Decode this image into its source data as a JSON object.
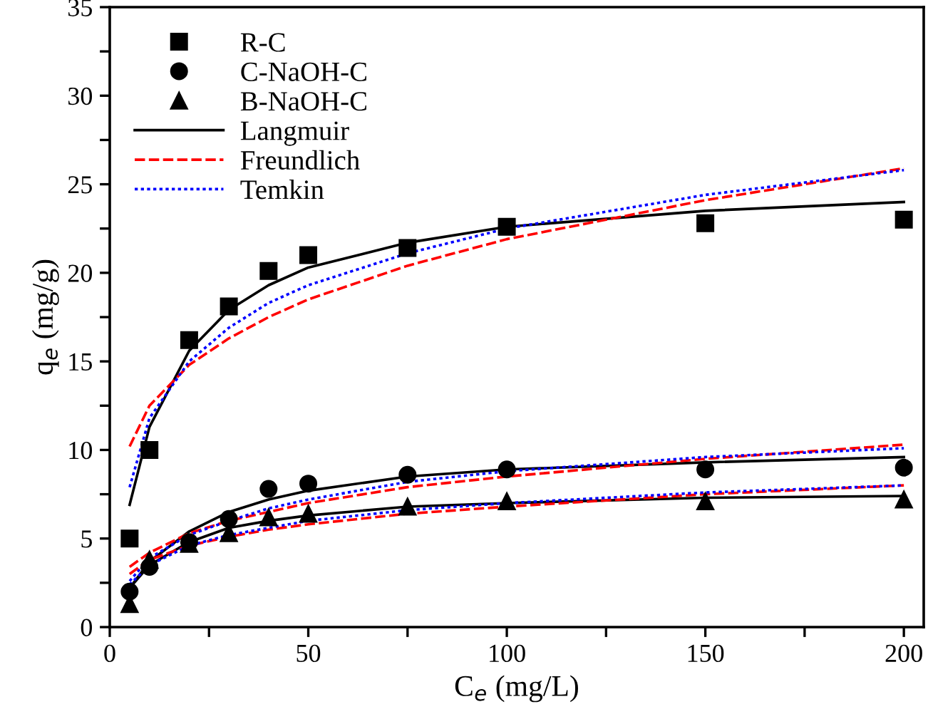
{
  "chart_data": {
    "type": "scatter",
    "xlabel": "C$_{e}$ (mg/L)",
    "ylabel": "q$_{e}$ (mg/g)",
    "xlim": [
      0,
      205
    ],
    "ylim": [
      0,
      35
    ],
    "xticks": [
      0,
      {
        "value": 25,
        "label": null
      },
      50,
      {
        "value": 75,
        "label": null
      },
      100,
      {
        "value": 125,
        "label": null
      },
      150,
      {
        "value": 175,
        "label": null
      },
      200
    ],
    "yticks": [
      0,
      {
        "value": 2.5,
        "label": null
      },
      5,
      {
        "value": 7.5,
        "label": null
      },
      10,
      {
        "value": 12.5,
        "label": null
      },
      15,
      {
        "value": 17.5,
        "label": null
      },
      20,
      {
        "value": 22.5,
        "label": null
      },
      25,
      {
        "value": 27.5,
        "label": null
      },
      30,
      {
        "value": 32.5,
        "label": null
      },
      35
    ],
    "grid": false,
    "legend": "top left",
    "series": [
      {
        "name": "R-C",
        "marker": "square",
        "color": "#000000",
        "x": [
          5,
          10,
          20,
          30,
          40,
          50,
          75,
          100,
          150,
          200
        ],
        "values": [
          5.0,
          10.0,
          16.2,
          18.1,
          20.1,
          21.0,
          21.4,
          22.6,
          22.8,
          23.0
        ]
      },
      {
        "name": "C-NaOH-C",
        "marker": "circle",
        "color": "#000000",
        "x": [
          5,
          10,
          20,
          30,
          40,
          50,
          75,
          100,
          150,
          200
        ],
        "values": [
          2.0,
          3.4,
          4.8,
          6.1,
          7.8,
          8.1,
          8.6,
          8.9,
          8.9,
          9.0
        ]
      },
      {
        "name": "B-NaOH-C",
        "marker": "triangle",
        "color": "#000000",
        "x": [
          5,
          10,
          20,
          30,
          40,
          50,
          75,
          100,
          150,
          200
        ],
        "values": [
          1.3,
          3.8,
          4.7,
          5.3,
          6.2,
          6.4,
          6.8,
          7.1,
          7.1,
          7.2
        ]
      },
      {
        "name": "Langmuir",
        "type": "line",
        "line_style": "solid",
        "color": "#000000",
        "x": [
          5,
          10,
          20,
          30,
          40,
          50,
          75,
          100,
          150,
          200
        ],
        "values": [
          6.9,
          11.3,
          15.6,
          17.9,
          19.3,
          20.3,
          21.7,
          22.6,
          23.5,
          24.0
        ]
      },
      {
        "name": "Freundlich",
        "type": "line",
        "line_style": "dashed",
        "color": "#ff0000",
        "x": [
          5,
          10,
          20,
          30,
          40,
          50,
          75,
          100,
          150,
          200
        ],
        "values": [
          10.2,
          12.5,
          14.8,
          16.3,
          17.5,
          18.5,
          20.4,
          21.9,
          24.1,
          25.9
        ]
      },
      {
        "name": "Temkin",
        "type": "line",
        "line_style": "dotted",
        "color": "#0000ff",
        "x": [
          5,
          10,
          20,
          30,
          40,
          50,
          75,
          100,
          150,
          200
        ],
        "values": [
          7.9,
          11.8,
          15.0,
          16.9,
          18.3,
          19.3,
          21.1,
          22.5,
          24.4,
          25.8
        ]
      },
      {
        "type": "line",
        "line_style": "solid",
        "color": "#000000",
        "x": [
          5,
          10,
          20,
          30,
          40,
          50,
          75,
          100,
          150,
          200
        ],
        "values": [
          2.2,
          3.7,
          5.4,
          6.5,
          7.2,
          7.7,
          8.5,
          8.9,
          9.3,
          9.6
        ]
      },
      {
        "type": "line",
        "line_style": "dashed",
        "color": "#ff0000",
        "x": [
          5,
          10,
          20,
          30,
          40,
          50,
          75,
          100,
          150,
          200
        ],
        "values": [
          3.4,
          4.2,
          5.3,
          6.0,
          6.5,
          7.0,
          7.9,
          8.5,
          9.5,
          10.3
        ]
      },
      {
        "type": "line",
        "line_style": "dotted",
        "color": "#0000ff",
        "x": [
          5,
          10,
          20,
          30,
          40,
          50,
          75,
          100,
          150,
          200
        ],
        "values": [
          2.6,
          3.9,
          5.2,
          6.0,
          6.7,
          7.2,
          8.2,
          8.8,
          9.6,
          10.1
        ]
      },
      {
        "type": "line",
        "line_style": "solid",
        "color": "#000000",
        "x": [
          5,
          10,
          20,
          30,
          40,
          50,
          75,
          100,
          150,
          200
        ],
        "values": [
          2.2,
          3.5,
          4.8,
          5.6,
          6.0,
          6.3,
          6.8,
          7.0,
          7.3,
          7.4
        ]
      },
      {
        "type": "line",
        "line_style": "dashed",
        "color": "#ff0000",
        "x": [
          5,
          10,
          20,
          30,
          40,
          50,
          75,
          100,
          150,
          200
        ],
        "values": [
          3.0,
          3.8,
          4.6,
          5.1,
          5.5,
          5.8,
          6.4,
          6.8,
          7.5,
          8.0
        ]
      },
      {
        "type": "line",
        "line_style": "dotted",
        "color": "#0000ff",
        "x": [
          5,
          10,
          20,
          30,
          40,
          50,
          75,
          100,
          150,
          200
        ],
        "values": [
          2.4,
          3.5,
          4.6,
          5.2,
          5.6,
          6.0,
          6.6,
          7.0,
          7.6,
          8.0
        ]
      }
    ]
  }
}
